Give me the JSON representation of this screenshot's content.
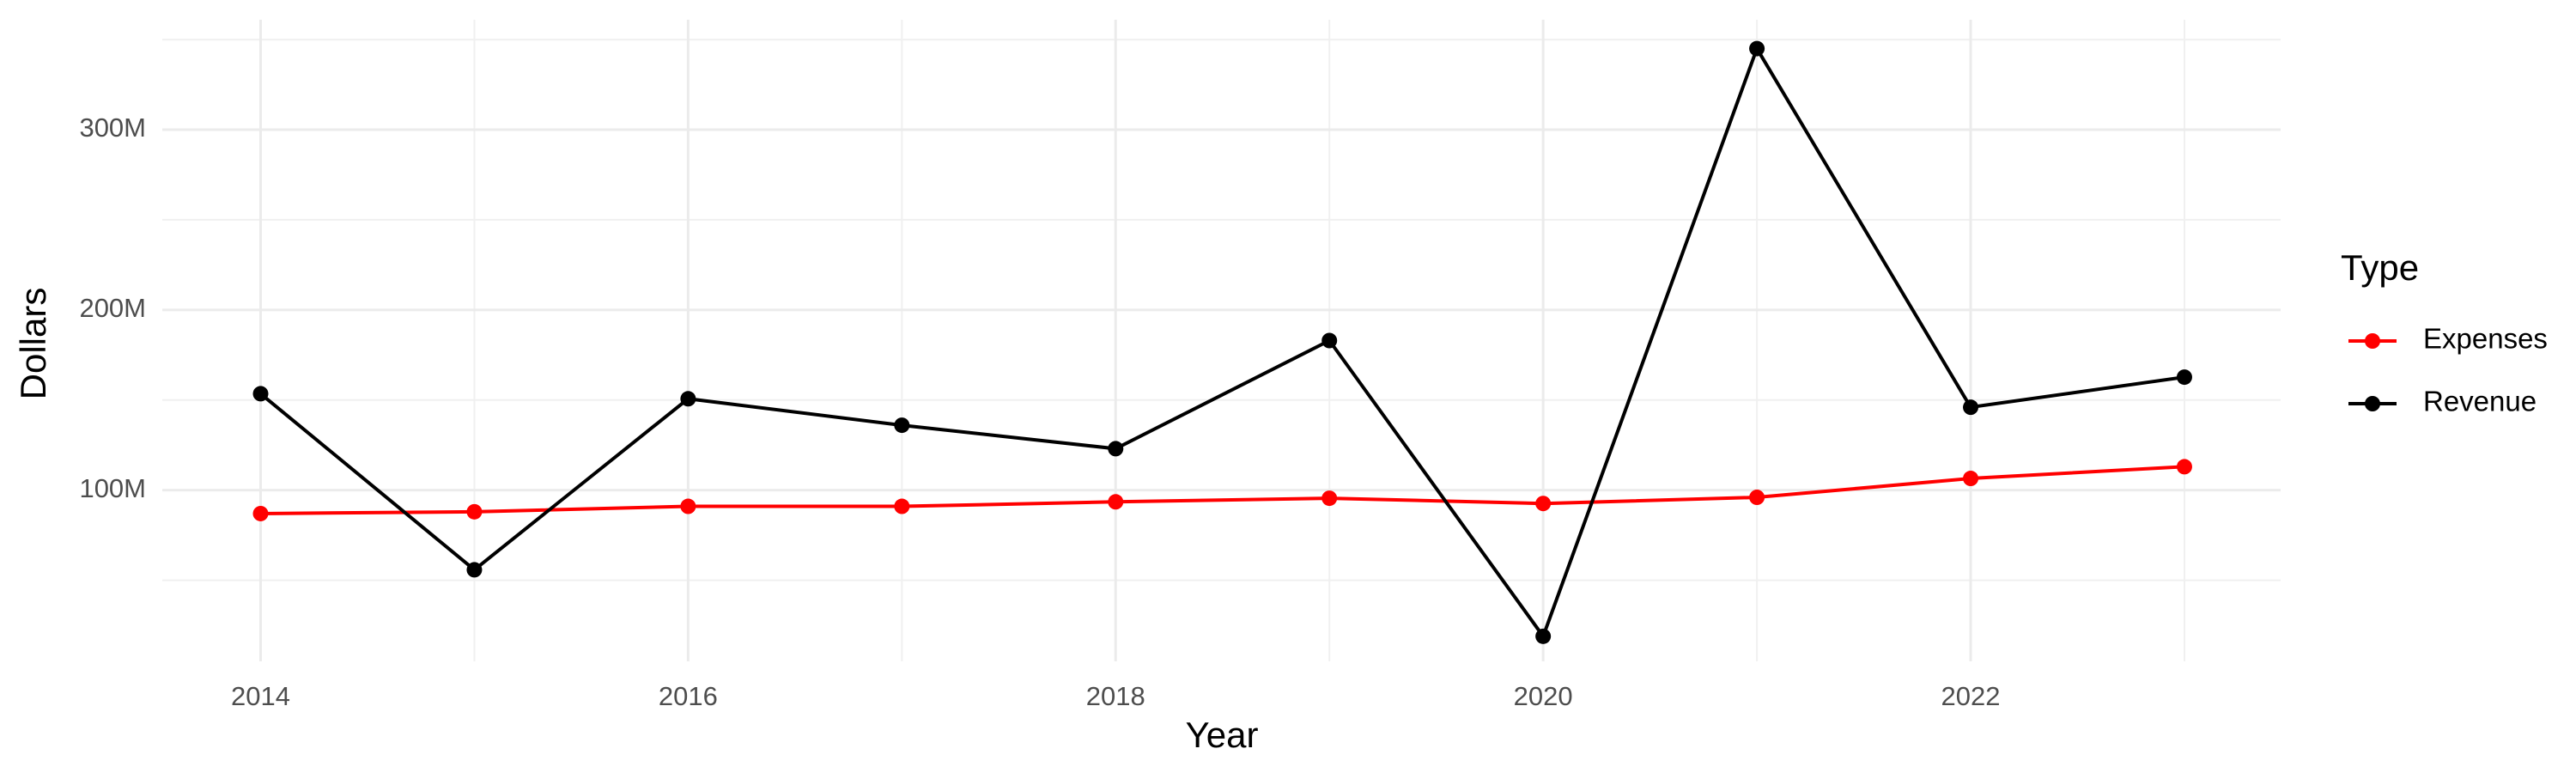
{
  "chart_data": {
    "type": "line",
    "x_label": "Year",
    "y_label": "Dollars",
    "legend_title": "Type",
    "legend_position": "right",
    "x": [
      2014,
      2015,
      2016,
      2017,
      2018,
      2019,
      2020,
      2021,
      2022,
      2023
    ],
    "series": [
      {
        "name": "Expenses",
        "color": "#ff0000",
        "values": [
          87000000,
          88000000,
          91000000,
          91000000,
          93500000,
          95500000,
          92600000,
          96000000,
          106500000,
          113000000
        ]
      },
      {
        "name": "Revenue",
        "color": "#000000",
        "values": [
          153500000,
          55800000,
          150700000,
          136000000,
          123000000,
          183000000,
          18900000,
          345000000,
          146000000,
          162700000
        ]
      }
    ],
    "xlim": [
      2013.54,
      2023.45
    ],
    "xticks": [
      2014,
      2016,
      2018,
      2020,
      2022
    ],
    "ylim": [
      5000000,
      361000000
    ],
    "yticks": [
      {
        "value": 100000000,
        "label": "100M"
      },
      {
        "value": 200000000,
        "label": "200M"
      },
      {
        "value": 300000000,
        "label": "300M"
      }
    ],
    "grid": true
  }
}
